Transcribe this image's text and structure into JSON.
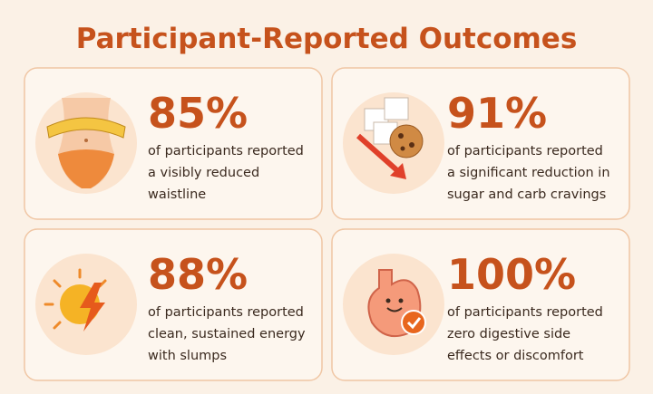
{
  "header": {
    "title": "Participant-Reported Outcomes"
  },
  "cards": [
    {
      "stat": "85%",
      "lines": [
        "of participants reported",
        "a visibly reduced",
        "waistline"
      ]
    },
    {
      "stat": "91%",
      "lines": [
        "of participants reported",
        "a significant reduction in",
        "sugar and carb cravings"
      ]
    },
    {
      "stat": "88%",
      "lines": [
        "of participants reported",
        "clean, sustained energy",
        "with slumps"
      ]
    },
    {
      "stat": "100%",
      "lines": [
        "of participants reported",
        "zero digestive side",
        "effects or discomfort"
      ]
    }
  ]
}
